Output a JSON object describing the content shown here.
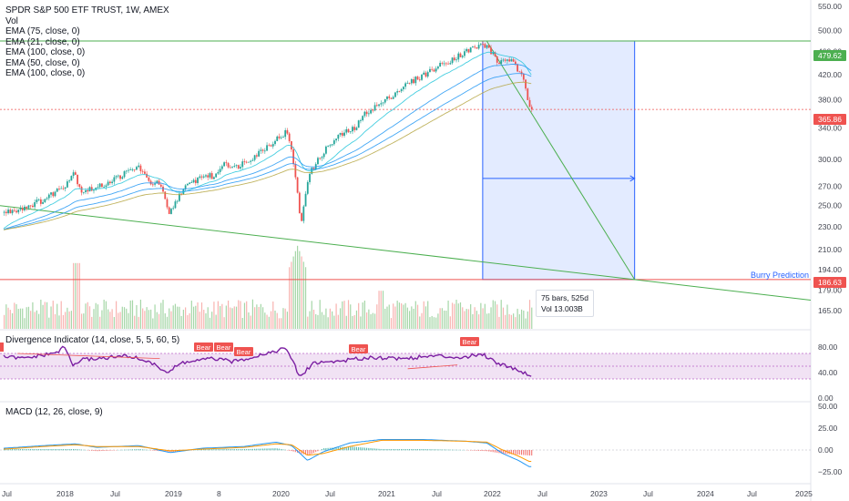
{
  "header": {
    "title": "SPDR S&P 500 ETF TRUST, 1W, AMEX",
    "indicators": [
      "Vol",
      "EMA (75, close, 0)",
      "EMA (21, close, 0)",
      "EMA (100, close, 0)",
      "EMA (50, close, 0)",
      "EMA (100, close, 0)"
    ]
  },
  "divergence_pane": {
    "label": "Divergence Indicator (14, close, 5, 5, 60, 5)"
  },
  "macd_pane": {
    "label": "MACD (12, 26, close, 9)"
  },
  "tooltip": {
    "bars": "75 bars, 525d",
    "vol": "Vol 13.003B"
  },
  "annotation": {
    "burry": "Burry Prediction"
  },
  "price_tags": {
    "top": "479.62",
    "current": "365.86",
    "bottom": "186.63"
  },
  "colors": {
    "up": "#26a69a",
    "down": "#ef5350",
    "ema_blue": "#2196f3",
    "ema_teal": "#26c6da",
    "ema_olive": "#b5a642",
    "trend": "#4caf50",
    "div_line": "#7b1fa2",
    "div_band": "#e1bee7",
    "macd": "#2196f3",
    "signal": "#ff9800",
    "box": "#2962ff"
  },
  "chart_data": [
    {
      "type": "line",
      "title": "SPDR S&P 500 ETF TRUST, 1W, AMEX",
      "scale": "log",
      "ylim": [
        150,
        560
      ],
      "y_ticks": [
        "550.00",
        "500.00",
        "460.00",
        "420.00",
        "380.00",
        "340.00",
        "300.00",
        "270.00",
        "250.00",
        "230.00",
        "210.00",
        "194.00",
        "179.00",
        "165.00"
      ],
      "x_ticks": [
        "Jul",
        "2018",
        "Jul",
        "2019",
        "8",
        "2020",
        "Jul",
        "2021",
        "Jul",
        "2022",
        "Jul",
        "2023",
        "Jul",
        "2024",
        "Jul",
        "2025"
      ],
      "x": [
        2017.42,
        2017.6,
        2017.8,
        2018.0,
        2018.08,
        2018.15,
        2018.3,
        2018.5,
        2018.7,
        2018.78,
        2018.9,
        2018.98,
        2019.1,
        2019.3,
        2019.42,
        2019.5,
        2019.6,
        2019.8,
        2020.0,
        2020.1,
        2020.17,
        2020.23,
        2020.3,
        2020.45,
        2020.6,
        2020.75,
        2020.85,
        2021.0,
        2021.2,
        2021.4,
        2021.6,
        2021.75,
        2021.85,
        2021.95,
        2022.0,
        2022.1,
        2022.2,
        2022.28,
        2022.34,
        2022.4
      ],
      "series": [
        {
          "values": [
            243,
            248,
            256,
            272,
            286,
            265,
            268,
            280,
            292,
            275,
            272,
            240,
            265,
            282,
            280,
            298,
            290,
            305,
            325,
            335,
            292,
            230,
            280,
            310,
            330,
            340,
            362,
            375,
            400,
            420,
            440,
            455,
            465,
            472,
            470,
            440,
            448,
            430,
            410,
            370
          ]
        }
      ],
      "annotations": [
        {
          "label": "Burry Prediction",
          "x": 2023.4,
          "y": 186.63
        },
        {
          "label": "75 bars, 525d",
          "x": 2022.4
        },
        {
          "label": "Vol 13.003B",
          "x": 2022.4
        }
      ],
      "levels": [
        479.62,
        365.86,
        186.63
      ],
      "projection": {
        "x_start": 2021.96,
        "x_end": 2023.4,
        "y_high": 479.62,
        "y_low": 186.63
      }
    },
    {
      "type": "line",
      "title": "Divergence Indicator (14, close, 5, 5, 60, 5)",
      "ylim": [
        0,
        90
      ],
      "y_ticks": [
        "80.00",
        "40.00",
        "0.00"
      ],
      "x": [
        2017.42,
        2017.6,
        2017.9,
        2018.0,
        2018.08,
        2018.15,
        2018.3,
        2018.6,
        2018.78,
        2018.98,
        2019.1,
        2019.4,
        2019.6,
        2019.9,
        2020.1,
        2020.18,
        2020.23,
        2020.35,
        2020.6,
        2020.9,
        2021.2,
        2021.5,
        2021.8,
        2021.95,
        2022.0,
        2022.1,
        2022.2,
        2022.3,
        2022.4
      ],
      "series": [
        {
          "values": [
            65,
            62,
            70,
            80,
            50,
            60,
            62,
            66,
            58,
            40,
            55,
            62,
            57,
            70,
            78,
            50,
            32,
            55,
            58,
            64,
            62,
            66,
            64,
            70,
            65,
            55,
            50,
            44,
            36
          ]
        }
      ],
      "labels": [
        "Bear",
        "Bear",
        "Bear",
        "Bear",
        "Bear"
      ]
    },
    {
      "type": "line",
      "title": "MACD (12, 26, close, 9)",
      "ylim": [
        -35,
        55
      ],
      "y_ticks": [
        "50.00",
        "25.00",
        "0.00",
        "−25.00"
      ],
      "x": [
        2017.42,
        2017.8,
        2018.1,
        2018.3,
        2018.7,
        2019.0,
        2019.3,
        2019.7,
        2020.0,
        2020.15,
        2020.3,
        2020.45,
        2020.7,
        2021.0,
        2021.4,
        2021.8,
        2022.0,
        2022.15,
        2022.3,
        2022.4
      ],
      "series": [
        {
          "values": [
            2,
            5,
            7,
            3,
            5,
            -3,
            2,
            4,
            9,
            5,
            -12,
            -2,
            8,
            12,
            12,
            10,
            8,
            -4,
            -12,
            -19
          ]
        },
        {
          "values": [
            1,
            4,
            6,
            4,
            4,
            -1,
            1,
            3,
            7,
            6,
            -6,
            -4,
            4,
            11,
            11,
            10,
            9,
            0,
            -7,
            -13
          ]
        }
      ]
    }
  ]
}
